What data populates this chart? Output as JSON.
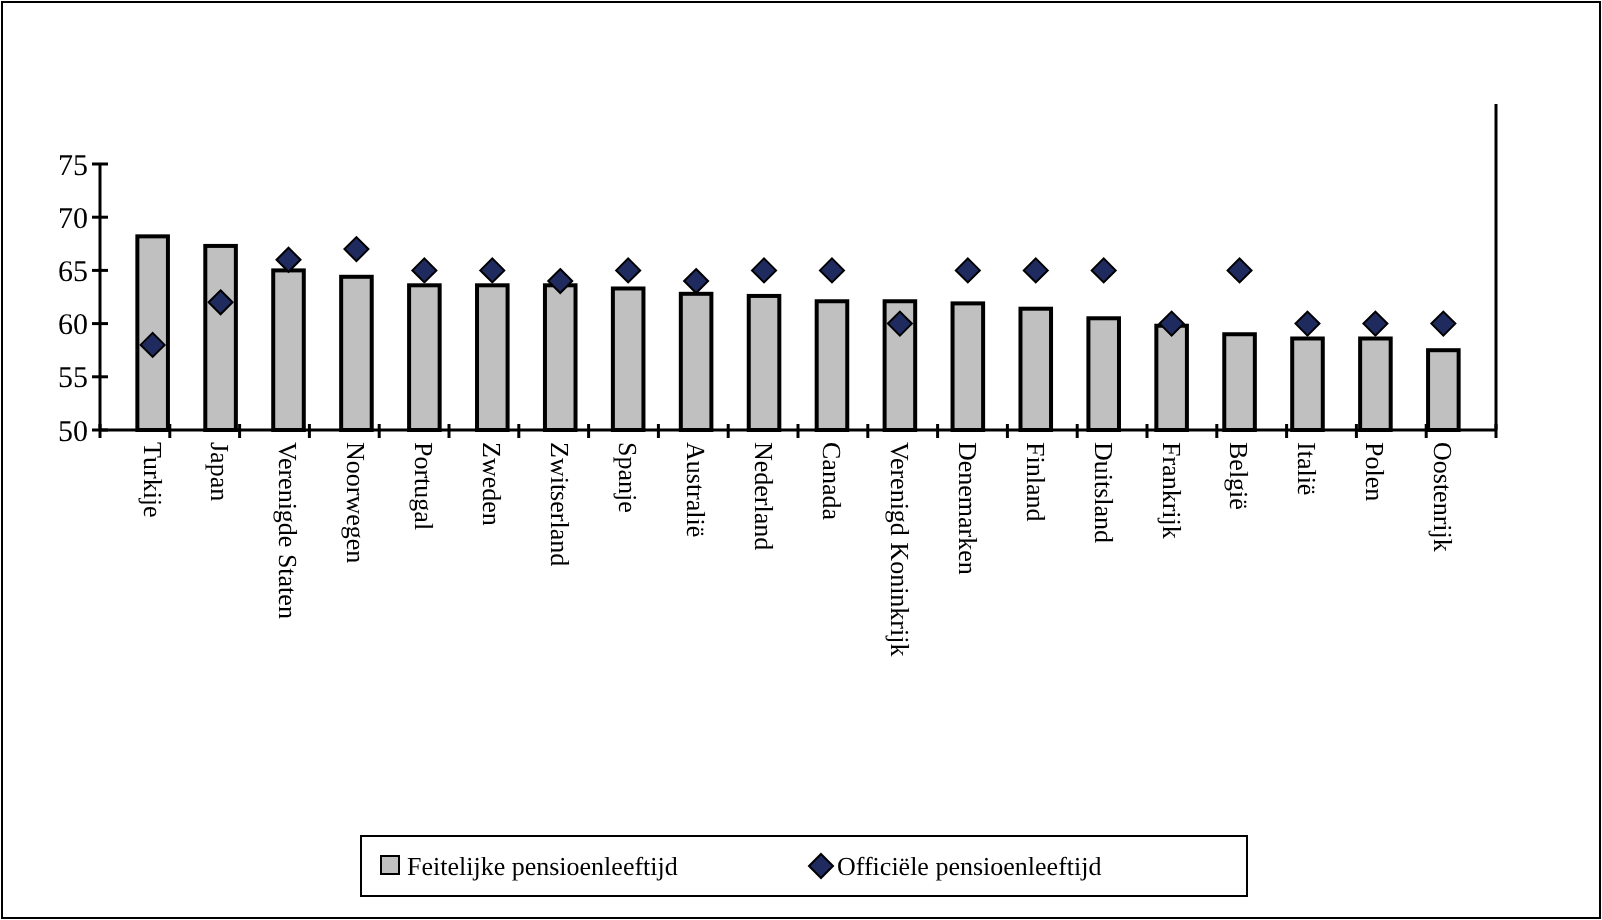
{
  "chart_data": {
    "type": "bar",
    "categories": [
      "Turkije",
      "Japan",
      "Verenigde Staten",
      "Noorwegen",
      "Portugal",
      "Zweden",
      "Zwitserland",
      "Spanje",
      "Australië",
      "Nederland",
      "Canada",
      "Verenigd Koninkrijk",
      "Denemarken",
      "Finland",
      "Duitsland",
      "Frankrijk",
      "België",
      "Italië",
      "Polen",
      "Oostenrijk"
    ],
    "series": [
      {
        "name": "Feitelijke pensioenleeftijd",
        "color": "#c0c0c0",
        "values": [
          68.2,
          67.3,
          65.0,
          64.4,
          63.6,
          63.6,
          63.6,
          63.3,
          62.8,
          62.6,
          62.1,
          62.1,
          61.9,
          61.4,
          60.5,
          59.8,
          59.0,
          58.6,
          58.6,
          57.5
        ]
      },
      {
        "name": "Officiële pensioenleeftijd",
        "type": "scatter",
        "marker": "diamond",
        "color": "#1f2a5e",
        "values": [
          58,
          62,
          66,
          67,
          65,
          65,
          64,
          65,
          64,
          65,
          65,
          60,
          65,
          65,
          65,
          60,
          65,
          60,
          60,
          60
        ]
      }
    ],
    "ylim": [
      50,
      75
    ],
    "yticks": [
      50,
      55,
      60,
      65,
      70,
      75
    ],
    "grid": false,
    "legend": "bottom"
  }
}
